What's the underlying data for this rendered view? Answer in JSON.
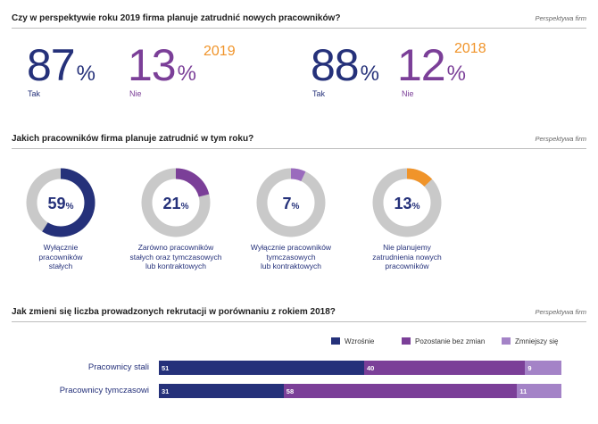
{
  "section1": {
    "question": "Czy w perspektywie roku 2019 firma planuje zatrudnić nowych pracowników?",
    "source": "Perspektywa firm",
    "blocks": [
      {
        "year": "2019",
        "yes_value": "87",
        "no_value": "13",
        "pct": "%",
        "yes_label": "Tak",
        "no_label": "Nie"
      },
      {
        "year": "2018",
        "yes_value": "88",
        "no_value": "12",
        "pct": "%",
        "yes_label": "Tak",
        "no_label": "Nie"
      }
    ]
  },
  "section2": {
    "question": "Jakich pracowników firma planuje zatrudnić w tym roku?",
    "source": "Perspektywa firm",
    "donuts": [
      {
        "value_text": "59",
        "pct": "%",
        "value": 59,
        "color": "#25317a",
        "caption": [
          "Wyłącznie",
          "pracowników",
          "stałych"
        ]
      },
      {
        "value_text": "21",
        "pct": "%",
        "value": 21,
        "color": "#7b3f98",
        "caption": [
          "Zarówno pracowników",
          "stałych oraz tymczasowych",
          "lub kontraktowych"
        ]
      },
      {
        "value_text": "7",
        "pct": "%",
        "value": 7,
        "color": "#9a6bbd",
        "caption": [
          "Wyłącznie pracowników",
          "tymczasowych",
          "lub kontraktowych"
        ]
      },
      {
        "value_text": "13",
        "pct": "%",
        "value": 13,
        "color": "#f0942a",
        "caption": [
          "Nie planujemy",
          "zatrudnienia nowych",
          "pracowników"
        ]
      }
    ]
  },
  "section3": {
    "question": "Jak zmieni się liczba prowadzonych rekrutacji w porównaniu z rokiem 2018?",
    "source": "Perspektywa firm"
  },
  "chart_data": {
    "type": "bar",
    "orientation": "horizontal",
    "stacked": true,
    "categories": [
      "Pracownicy stali",
      "Pracownicy tymczasowi"
    ],
    "series": [
      {
        "name": "Wzrośnie",
        "color": "#25317a",
        "values": [
          51,
          31
        ]
      },
      {
        "name": "Pozostanie bez zmian",
        "color": "#7b3f98",
        "values": [
          40,
          58
        ]
      },
      {
        "name": "Zmniejszy się",
        "color": "#a483c7",
        "values": [
          9,
          11
        ]
      }
    ],
    "xlim": [
      0,
      100
    ]
  }
}
